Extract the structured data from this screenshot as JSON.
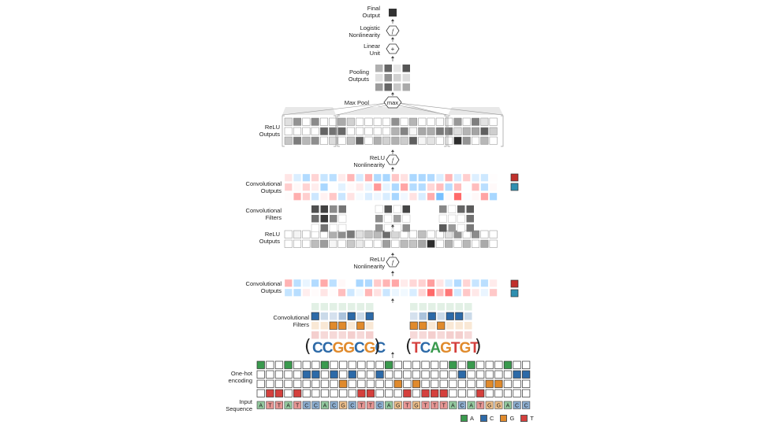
{
  "labels": {
    "final_output": "Final\nOutput",
    "logistic_nonlinearity": "Logistic\nNonlinearity",
    "linear_unit": "Linear\nUnit",
    "pooling_outputs": "Pooling\nOutputs",
    "max_pool": "Max Pool",
    "max_op": "max",
    "relu_outputs_top": "ReLU\nOutputs",
    "relu_nonlinearity_top": "ReLU\nNonlinearity",
    "conv_outputs_top": "Convolutional\nOutputs",
    "conv_filters_top": "Convolutional\nFilters",
    "relu_outputs_mid": "ReLU\nOutputs",
    "relu_nonlinearity_mid": "ReLU\nNonlinearity",
    "conv_outputs_bottom": "Convolutional\nOutputs",
    "conv_filters_bottom": "Convolutional\nFilters",
    "onehot": "One-hot\nencoding",
    "input_sequence": "Input\nSequence",
    "plus_op": "+",
    "logistic_op": "f",
    "relu_op": "f"
  },
  "motif_left": "CCGGCGC",
  "motif_right": "TCAGTGT",
  "sequence": "ATTATCCACGCTTCAGTGTTTACATGGACC",
  "legend": [
    {
      "label": "A",
      "color": "#3a9a4e"
    },
    {
      "label": "C",
      "color": "#2d6aa8"
    },
    {
      "label": "G",
      "color": "#e08a2c"
    },
    {
      "label": "T",
      "color": "#d4403d"
    }
  ]
}
